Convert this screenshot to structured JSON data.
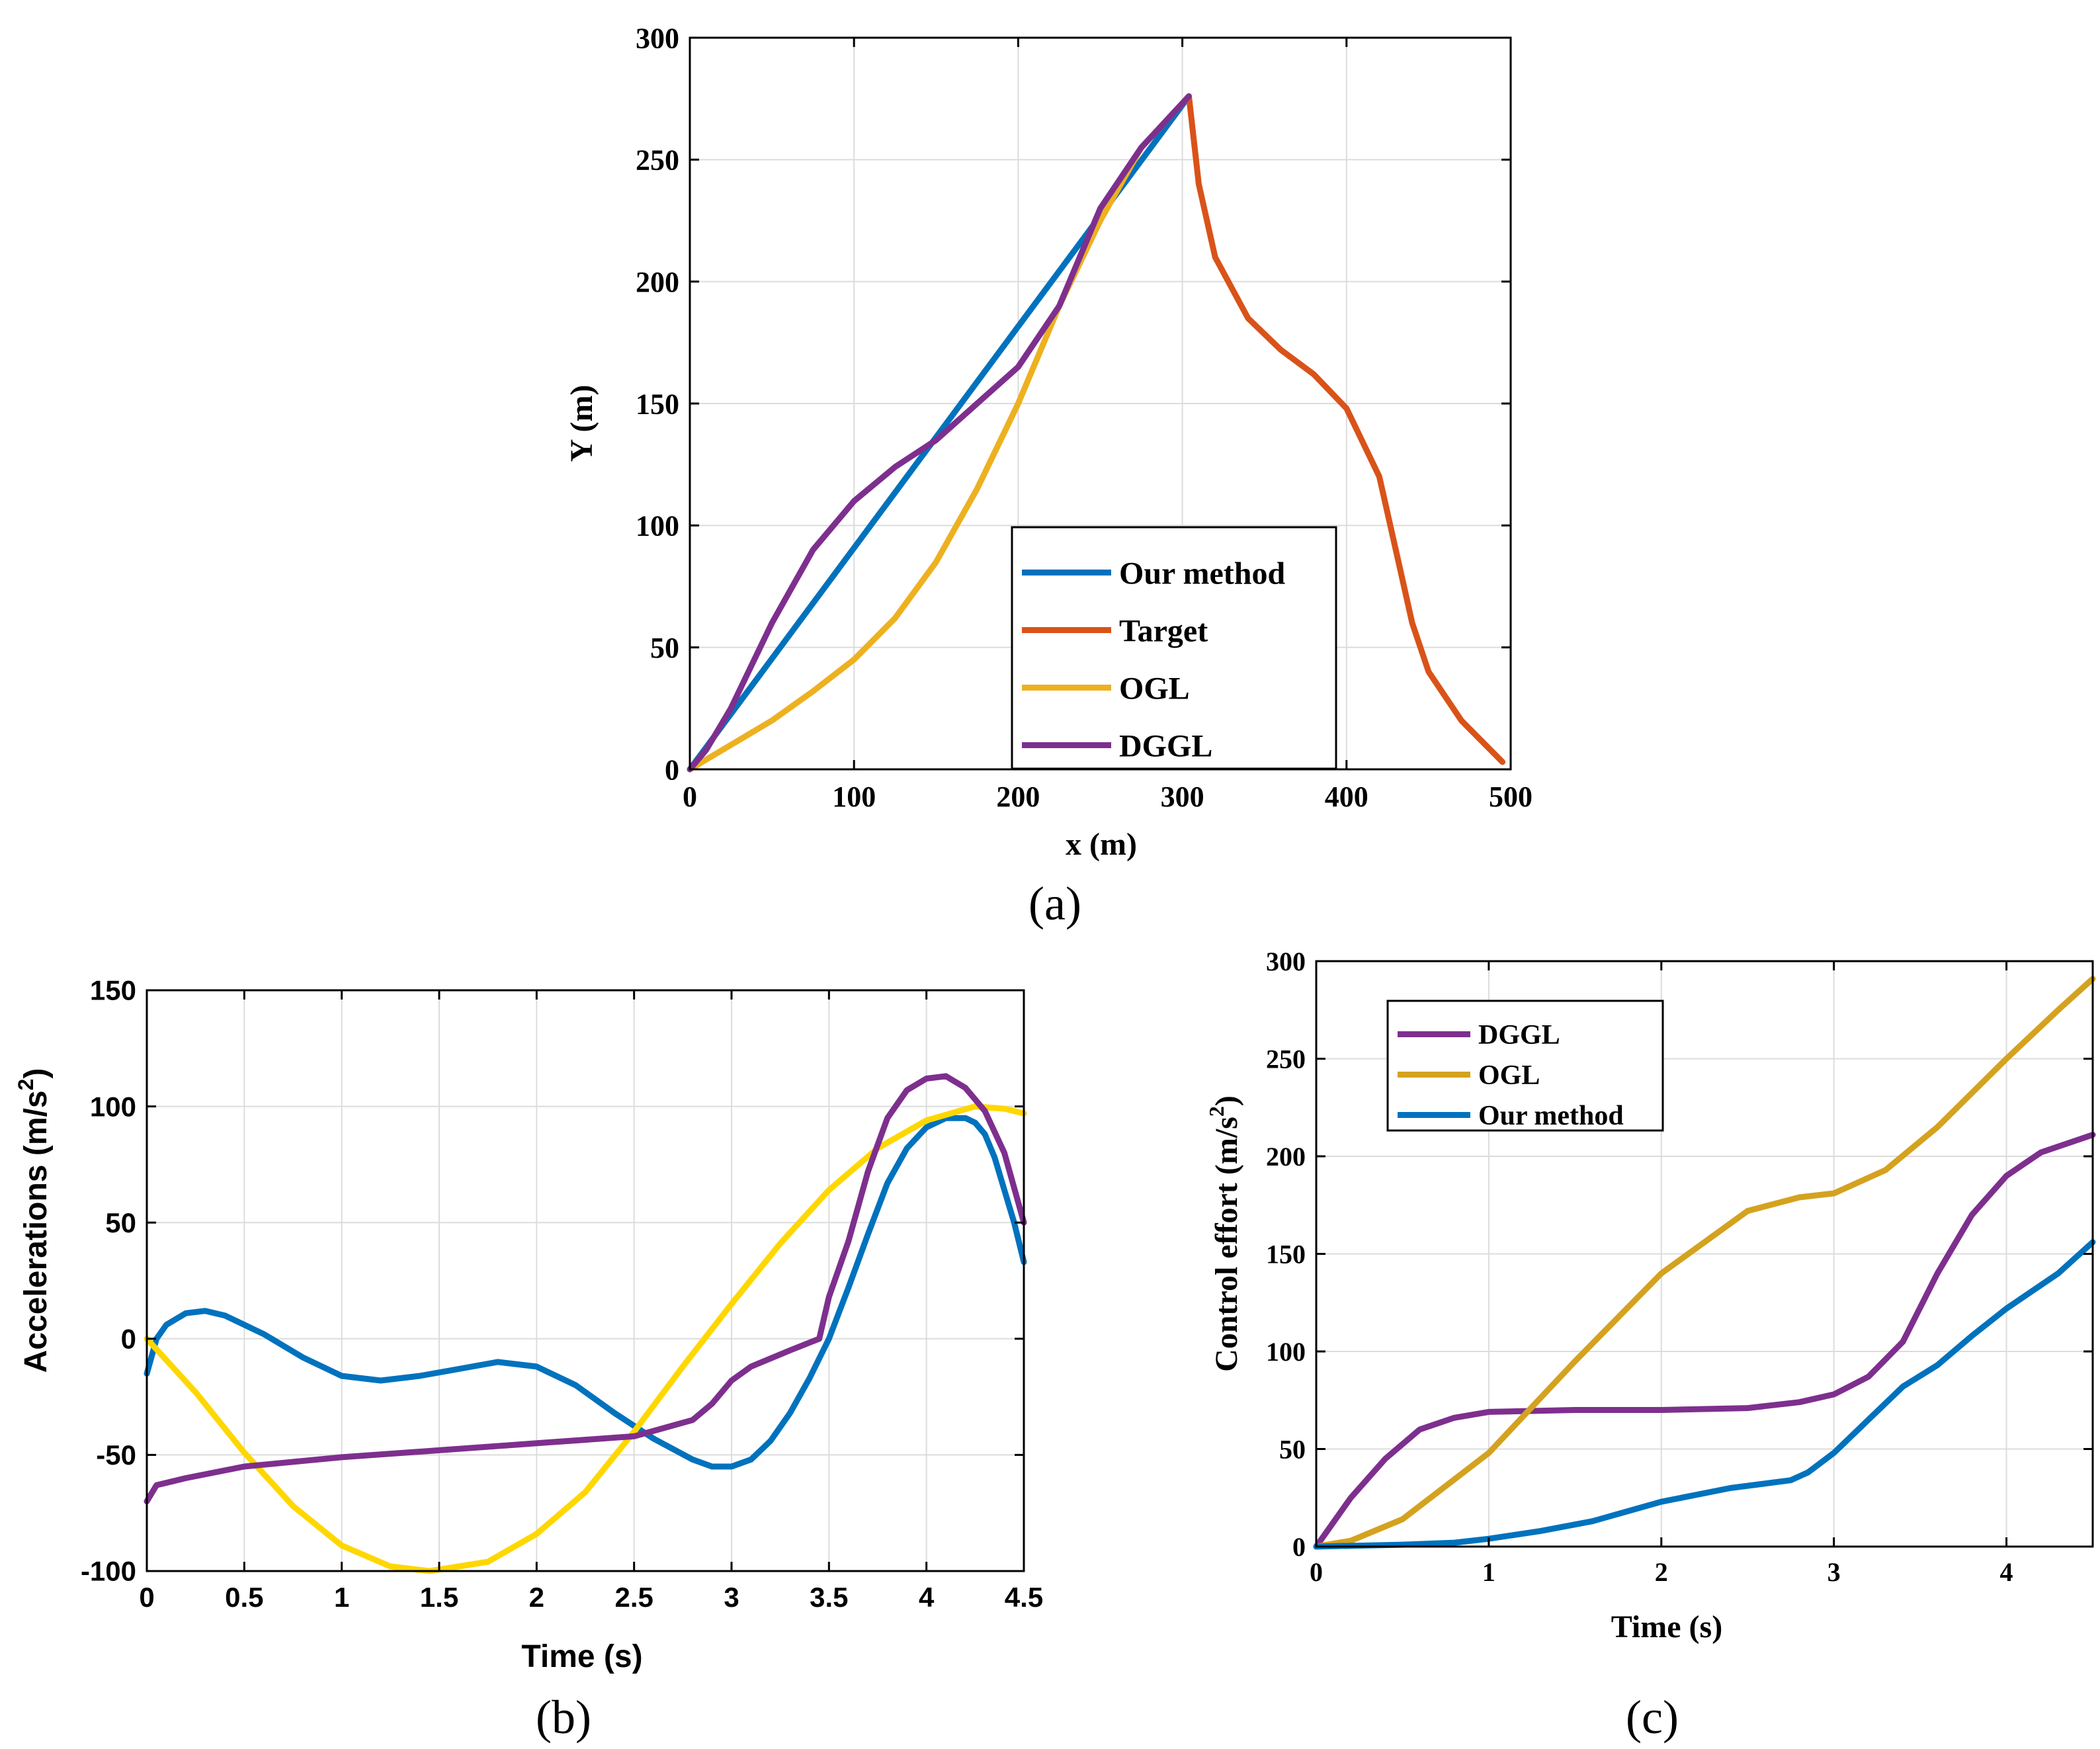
{
  "chart_data": [
    {
      "type": "line",
      "caption": "(a)",
      "xlabel": "x (m)",
      "ylabel": "Y (m)",
      "xlim": [
        0,
        500
      ],
      "ylim": [
        0,
        300
      ],
      "xticks": [
        0,
        100,
        200,
        300,
        400,
        500
      ],
      "yticks": [
        0,
        50,
        100,
        150,
        200,
        250,
        300
      ],
      "grid": true,
      "legend_position": "bottom-right",
      "series": [
        {
          "name": "Our method",
          "color": "#0072BD",
          "x": [
            0,
            304
          ],
          "y": [
            0,
            276
          ]
        },
        {
          "name": "Target",
          "color": "#D95319",
          "x": [
            304,
            310,
            320,
            340,
            360,
            380,
            400,
            420,
            430,
            440,
            450,
            470,
            495
          ],
          "y": [
            276,
            240,
            210,
            185,
            172,
            162,
            148,
            120,
            90,
            60,
            40,
            20,
            3
          ]
        },
        {
          "name": "OGL",
          "color": "#EDB120",
          "x": [
            0,
            25,
            50,
            75,
            100,
            125,
            150,
            175,
            200,
            225,
            250,
            275,
            304
          ],
          "y": [
            0,
            10,
            20,
            32,
            45,
            62,
            85,
            115,
            150,
            190,
            225,
            255,
            276
          ]
        },
        {
          "name": "DGGL",
          "color": "#7E2F8E",
          "x": [
            0,
            10,
            25,
            50,
            75,
            100,
            125,
            150,
            175,
            200,
            225,
            250,
            275,
            304
          ],
          "y": [
            0,
            8,
            25,
            60,
            90,
            110,
            124,
            135,
            150,
            165,
            190,
            230,
            255,
            276
          ]
        }
      ]
    },
    {
      "type": "line",
      "caption": "(b)",
      "xlabel": "Time (s)",
      "ylabel": "Accelerations (m/s",
      "ylabel_sup": "2",
      "ylabel_close": ")",
      "xlim": [
        0,
        4.5
      ],
      "ylim": [
        -100,
        150
      ],
      "xticks": [
        0,
        0.5,
        1,
        1.5,
        2,
        2.5,
        3,
        3.5,
        4,
        4.5
      ],
      "yticks": [
        -100,
        -50,
        0,
        50,
        100,
        150
      ],
      "grid": true,
      "series": [
        {
          "color": "#0072BD",
          "x": [
            0,
            0.05,
            0.1,
            0.2,
            0.3,
            0.4,
            0.6,
            0.8,
            1.0,
            1.2,
            1.4,
            1.6,
            1.8,
            2.0,
            2.2,
            2.4,
            2.6,
            2.8,
            2.9,
            3.0,
            3.1,
            3.2,
            3.3,
            3.4,
            3.5,
            3.6,
            3.7,
            3.8,
            3.9,
            4.0,
            4.1,
            4.2,
            4.25,
            4.3,
            4.35,
            4.4,
            4.45,
            4.5
          ],
          "y": [
            -15,
            0,
            6,
            11,
            12,
            10,
            2,
            -8,
            -16,
            -18,
            -16,
            -13,
            -10,
            -12,
            -20,
            -32,
            -43,
            -52,
            -55,
            -55,
            -52,
            -44,
            -32,
            -17,
            0,
            22,
            45,
            67,
            82,
            91,
            95,
            95,
            93,
            88,
            78,
            64,
            50,
            33
          ]
        },
        {
          "color": "#FFD700",
          "x": [
            0,
            0.25,
            0.5,
            0.75,
            1.0,
            1.25,
            1.45,
            1.75,
            2.0,
            2.25,
            2.5,
            2.75,
            3.0,
            3.25,
            3.5,
            3.75,
            4.0,
            4.25,
            4.4,
            4.5
          ],
          "y": [
            0,
            -23,
            -49,
            -72,
            -89,
            -98,
            -100,
            -96,
            -84,
            -66,
            -40,
            -12,
            15,
            41,
            64,
            82,
            94,
            100,
            99,
            97
          ]
        },
        {
          "color": "#7E2F8E",
          "x": [
            0,
            0.05,
            0.2,
            0.5,
            1.0,
            1.5,
            2.0,
            2.5,
            2.8,
            2.9,
            3.0,
            3.1,
            3.3,
            3.45,
            3.5,
            3.6,
            3.7,
            3.8,
            3.9,
            4.0,
            4.1,
            4.2,
            4.3,
            4.4,
            4.5
          ],
          "y": [
            -70,
            -63,
            -60,
            -55,
            -51,
            -48,
            -45,
            -42,
            -35,
            -28,
            -18,
            -12,
            -5,
            0,
            18,
            42,
            72,
            95,
            107,
            112,
            113,
            108,
            98,
            80,
            50
          ]
        }
      ]
    },
    {
      "type": "line",
      "caption": "(c)",
      "xlabel": "Time (s)",
      "ylabel": "Control effort (m/s",
      "ylabel_sup": "2",
      "ylabel_close": ")",
      "xlim": [
        0,
        4.5
      ],
      "ylim": [
        0,
        300
      ],
      "xticks": [
        0,
        1,
        2,
        3,
        4
      ],
      "yticks": [
        0,
        50,
        100,
        150,
        200,
        250,
        300
      ],
      "grid": true,
      "legend_position": "top-left",
      "series": [
        {
          "name": "DGGL",
          "color": "#7E2F8E",
          "x": [
            0,
            0.2,
            0.4,
            0.6,
            0.8,
            1.0,
            1.5,
            2.0,
            2.5,
            2.8,
            3.0,
            3.2,
            3.4,
            3.6,
            3.8,
            4.0,
            4.2,
            4.5
          ],
          "y": [
            0,
            25,
            45,
            60,
            66,
            69,
            70,
            70,
            71,
            74,
            78,
            87,
            105,
            140,
            170,
            190,
            202,
            211
          ]
        },
        {
          "name": "OGL",
          "color": "#D4A21F",
          "x": [
            0,
            0.2,
            0.5,
            1.0,
            1.5,
            2.0,
            2.5,
            2.8,
            3.0,
            3.3,
            3.6,
            4.0,
            4.3,
            4.5
          ],
          "y": [
            0,
            3,
            14,
            48,
            95,
            140,
            172,
            179,
            181,
            193,
            215,
            250,
            275,
            291
          ]
        },
        {
          "name": "Our method",
          "color": "#0072BD",
          "x": [
            0,
            0.5,
            0.8,
            1.0,
            1.3,
            1.6,
            2.0,
            2.4,
            2.75,
            2.85,
            3.0,
            3.2,
            3.4,
            3.6,
            3.8,
            4.0,
            4.3,
            4.5
          ],
          "y": [
            0,
            1,
            2,
            4,
            8,
            13,
            23,
            30,
            34,
            38,
            48,
            65,
            82,
            93,
            108,
            122,
            140,
            156
          ]
        }
      ]
    }
  ]
}
